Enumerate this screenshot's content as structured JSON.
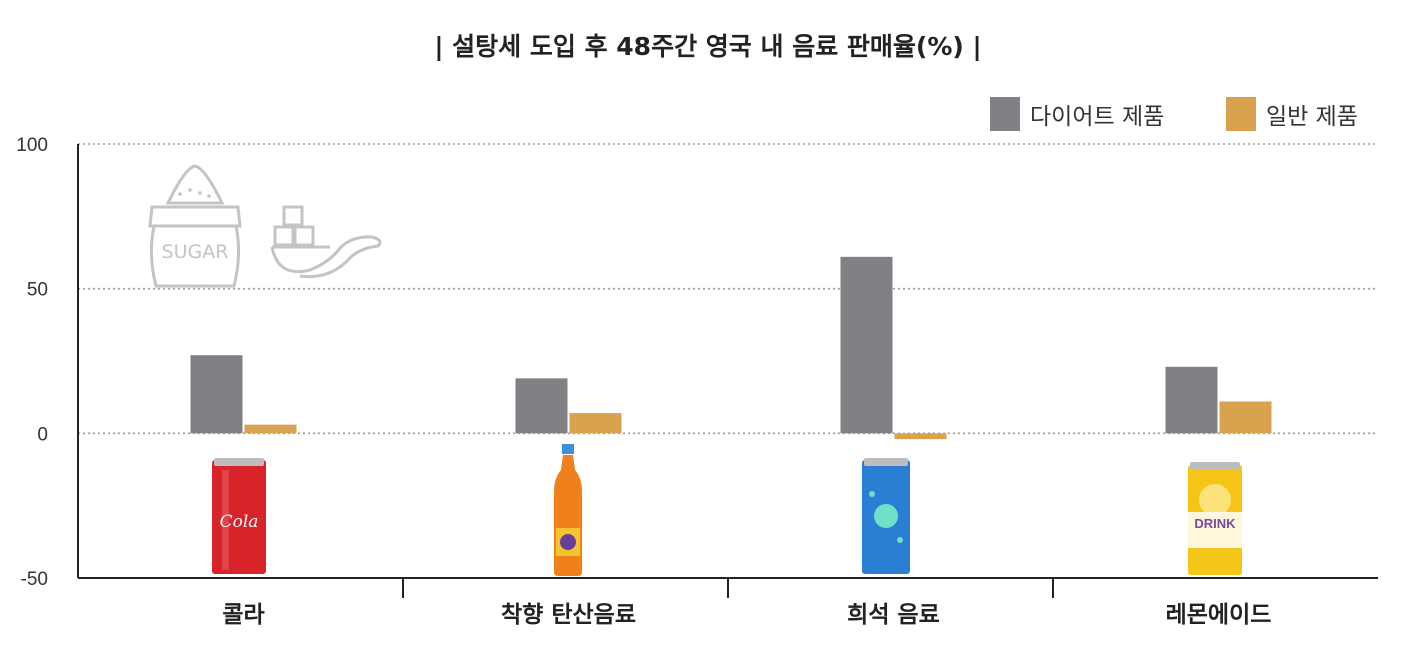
{
  "chart_data": {
    "type": "bar",
    "title": "| 설탕세 도입 후 48주간 영국 내 음료 판매율(%) |",
    "xlabel": "",
    "ylabel": "",
    "categories": [
      "콜라",
      "착향 탄산음료",
      "희석 음료",
      "레몬에이드"
    ],
    "series": [
      {
        "name": "다이어트 제품",
        "color": "#818185",
        "values": [
          27,
          19,
          61,
          23
        ]
      },
      {
        "name": "일반 제품",
        "color": "#d9a24f",
        "values": [
          3,
          7,
          -2,
          11
        ]
      }
    ],
    "ylim": [
      -50,
      100
    ],
    "yticks": [
      100,
      50,
      0,
      -50
    ],
    "grid": true,
    "legend_position": "top-right"
  },
  "decorations": {
    "sugar_sack_label": "SUGAR",
    "cola_can_label": "Cola",
    "lemonade_can_label": "DRINK",
    "icons": [
      "sugar-sack-icon",
      "sugar-cubes-spoon-icon",
      "cola-can-icon",
      "soda-bottle-icon",
      "blue-can-icon",
      "lemonade-can-icon"
    ]
  }
}
